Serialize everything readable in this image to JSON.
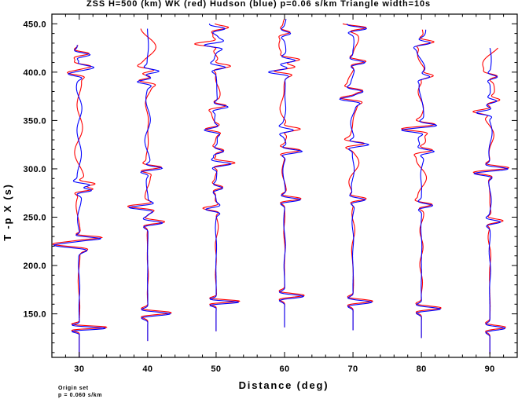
{
  "chart_data": {
    "type": "line",
    "title": "ZSS H=500 (km) WK (red) Hudson (blue) p=0.06 s/km Triangle width=10s",
    "xlabel": "Distance (deg)",
    "ylabel": "T -p X (s)",
    "xlim": [
      26,
      94
    ],
    "ylim": [
      105,
      460
    ],
    "x_ticks": [
      30,
      40,
      50,
      60,
      70,
      80,
      90
    ],
    "x_tick_labels": [
      "30",
      "40",
      "50",
      "60",
      "70",
      "80",
      "90"
    ],
    "y_ticks": [
      150,
      200,
      250,
      300,
      350,
      400,
      450
    ],
    "y_tick_labels": [
      "150.0",
      "200.0",
      "250.0",
      "300.0",
      "350.0",
      "400.0",
      "450.0"
    ],
    "grid": false,
    "series_colors": {
      "WK": "#ff0000",
      "Hudson": "#0000ff"
    },
    "traces": [
      {
        "distance": 30,
        "start": 105,
        "end": 428,
        "seed": 3,
        "pulses": [
          [
            135,
            7,
            1.5
          ],
          [
            221,
            -7,
            2.5
          ],
          [
            228,
            4,
            1.5
          ],
          [
            278,
            4,
            2
          ],
          [
            283,
            4,
            2
          ],
          [
            398,
            -3,
            2
          ],
          [
            405,
            3,
            2
          ],
          [
            418,
            3,
            2
          ]
        ]
      },
      {
        "distance": 40,
        "start": 122,
        "end": 445,
        "seed": 11,
        "pulses": [
          [
            150,
            6,
            2
          ],
          [
            244,
            4,
            2
          ],
          [
            260,
            -5,
            2
          ],
          [
            298,
            -2,
            2
          ],
          [
            300,
            4,
            2
          ],
          [
            390,
            -3,
            2
          ],
          [
            401,
            3,
            2
          ]
        ]
      },
      {
        "distance": 50,
        "start": 132,
        "end": 450,
        "seed": 19,
        "pulses": [
          [
            162,
            6,
            1.5
          ],
          [
            258,
            -3,
            2
          ],
          [
            280,
            2,
            2
          ],
          [
            305,
            4,
            2
          ],
          [
            318,
            2,
            2
          ],
          [
            340,
            -3,
            2
          ],
          [
            364,
            3,
            2
          ],
          [
            405,
            3,
            2
          ],
          [
            428,
            -4,
            2
          ],
          [
            445,
            3,
            2
          ]
        ]
      },
      {
        "distance": 60,
        "start": 136,
        "end": 455,
        "seed": 27,
        "pulses": [
          [
            168,
            5,
            2
          ],
          [
            268,
            4,
            2
          ],
          [
            318,
            4,
            2
          ],
          [
            340,
            3,
            2
          ],
          [
            400,
            -4,
            2
          ],
          [
            412,
            3,
            2
          ],
          [
            440,
            2,
            2
          ]
        ]
      },
      {
        "distance": 70,
        "start": 133,
        "end": 450,
        "seed": 35,
        "pulses": [
          [
            162,
            5,
            2
          ],
          [
            268,
            3,
            2
          ],
          [
            325,
            4,
            2
          ],
          [
            372,
            -4,
            2
          ],
          [
            380,
            3,
            2
          ],
          [
            410,
            3,
            2
          ],
          [
            445,
            4,
            2
          ]
        ]
      },
      {
        "distance": 80,
        "start": 125,
        "end": 444,
        "seed": 43,
        "pulses": [
          [
            155,
            5,
            2
          ],
          [
            262,
            3,
            2
          ],
          [
            318,
            3,
            2
          ],
          [
            340,
            -4,
            2
          ],
          [
            345,
            3,
            2
          ],
          [
            395,
            2,
            2
          ],
          [
            430,
            3,
            2
          ]
        ]
      },
      {
        "distance": 90,
        "start": 108,
        "end": 425,
        "seed": 51,
        "pulses": [
          [
            135,
            4,
            2
          ],
          [
            245,
            3,
            2
          ],
          [
            295,
            -3,
            2
          ],
          [
            300,
            4,
            2
          ],
          [
            358,
            -3,
            2
          ],
          [
            370,
            2,
            2
          ],
          [
            395,
            2,
            2
          ]
        ]
      }
    ]
  },
  "footer": {
    "line1": "Origin set",
    "line2": "p = 0.060 s/km"
  }
}
